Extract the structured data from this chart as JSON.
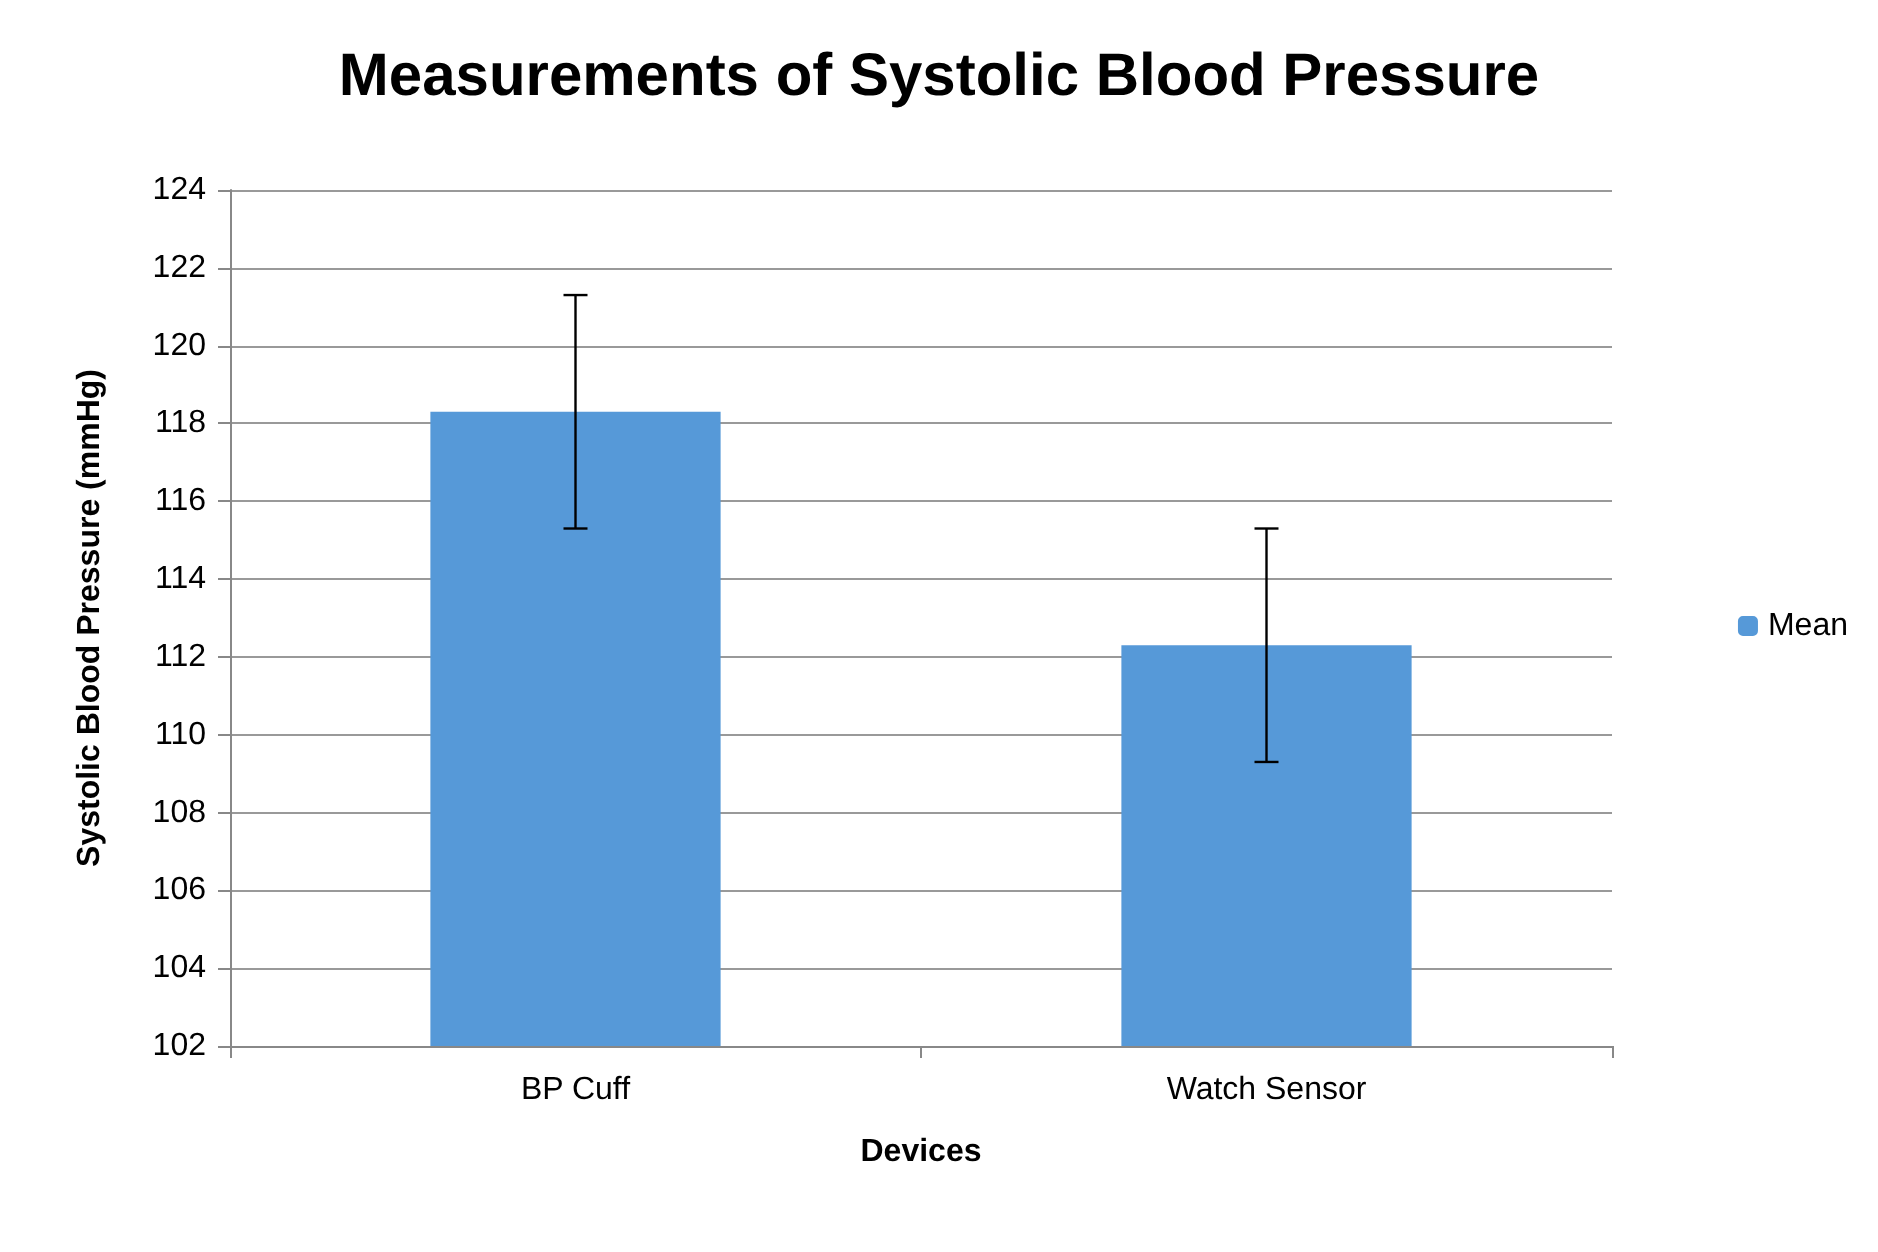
{
  "chart_data": {
    "type": "bar",
    "title": "Measurements of Systolic Blood Pressure",
    "xlabel": "Devices",
    "ylabel": "Systolic Blood Pressure (mmHg)",
    "categories": [
      "BP Cuff",
      "Watch Sensor"
    ],
    "series": [
      {
        "name": "Mean",
        "color": "#5699d8",
        "values": [
          118.3,
          112.3
        ],
        "errors": [
          3,
          3
        ]
      }
    ],
    "ylim": [
      102,
      124
    ],
    "yticks": [
      102,
      104,
      106,
      108,
      110,
      112,
      114,
      116,
      118,
      120,
      122,
      124
    ],
    "grid": "y",
    "legend": "right"
  }
}
